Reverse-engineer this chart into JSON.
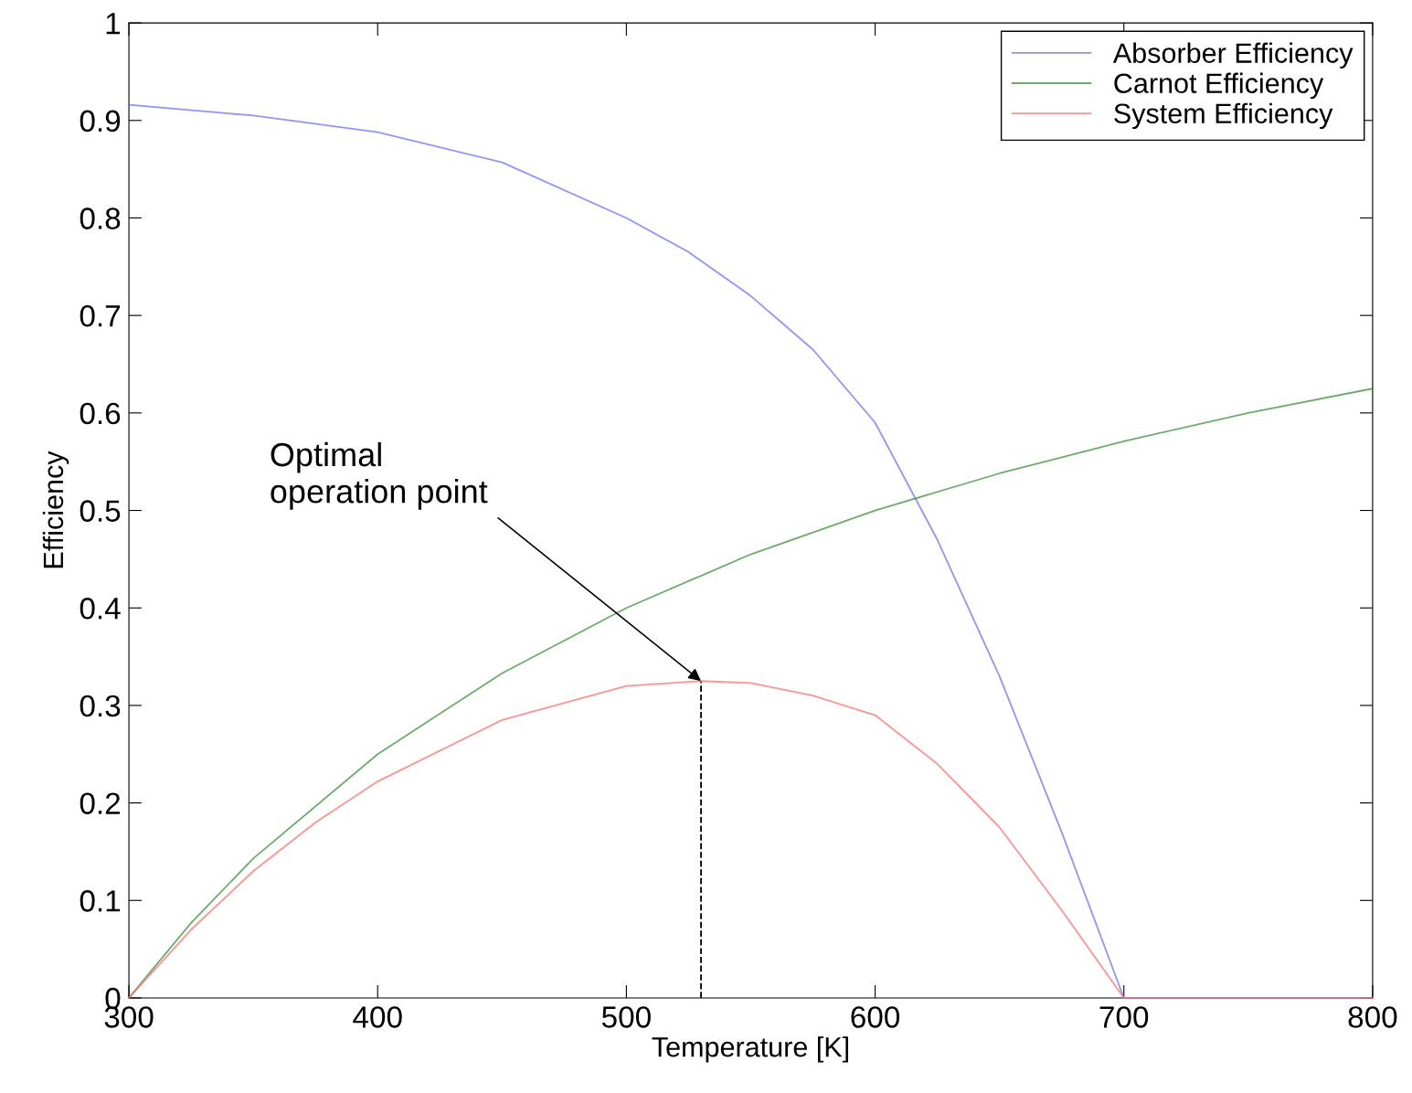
{
  "chart_data": {
    "type": "line",
    "xlabel": "Temperature [K]",
    "ylabel": "Efficiency",
    "xlim": [
      300,
      800
    ],
    "xticks": [
      300,
      400,
      500,
      600,
      700,
      800
    ],
    "ylim": [
      0,
      1
    ],
    "yticks": [
      0,
      0.1,
      0.2,
      0.3,
      0.4,
      0.5,
      0.6,
      0.7,
      0.8,
      0.9,
      1
    ],
    "grid": false,
    "legend": "top right",
    "line_style": "solid",
    "marker": "none",
    "series": [
      {
        "name": "Absorber Efficiency",
        "color": "#6f6fff",
        "x": [
          300,
          350,
          400,
          450,
          500,
          525,
          550,
          575,
          600,
          625,
          650,
          675,
          700,
          750,
          800
        ],
        "values": [
          0.916,
          0.905,
          0.888,
          0.857,
          0.8,
          0.765,
          0.72,
          0.665,
          0.59,
          0.47,
          0.33,
          0.17,
          0,
          0,
          0
        ]
      },
      {
        "name": "Carnot Efficiency",
        "color": "#3c8f3c",
        "x": [
          300,
          325,
          350,
          400,
          450,
          500,
          550,
          600,
          650,
          700,
          750,
          800
        ],
        "values": [
          0,
          0.077,
          0.143,
          0.25,
          0.333,
          0.4,
          0.455,
          0.5,
          0.538,
          0.571,
          0.6,
          0.625
        ]
      },
      {
        "name": "System Efficiency",
        "color": "#ff6f6f",
        "x": [
          300,
          325,
          350,
          375,
          400,
          450,
          500,
          530,
          550,
          575,
          600,
          625,
          650,
          675,
          700,
          750,
          800
        ],
        "values": [
          0,
          0.07,
          0.13,
          0.18,
          0.222,
          0.285,
          0.32,
          0.325,
          0.323,
          0.31,
          0.29,
          0.24,
          0.175,
          0.09,
          0,
          0,
          0
        ]
      }
    ],
    "ref_lines": [
      {
        "axis": "x",
        "value": 530,
        "color": "#000000",
        "line_style": "dashed"
      }
    ],
    "annotations": [
      {
        "text": "Optimal\noperation point",
        "x": 530,
        "y": 0.325
      }
    ]
  }
}
